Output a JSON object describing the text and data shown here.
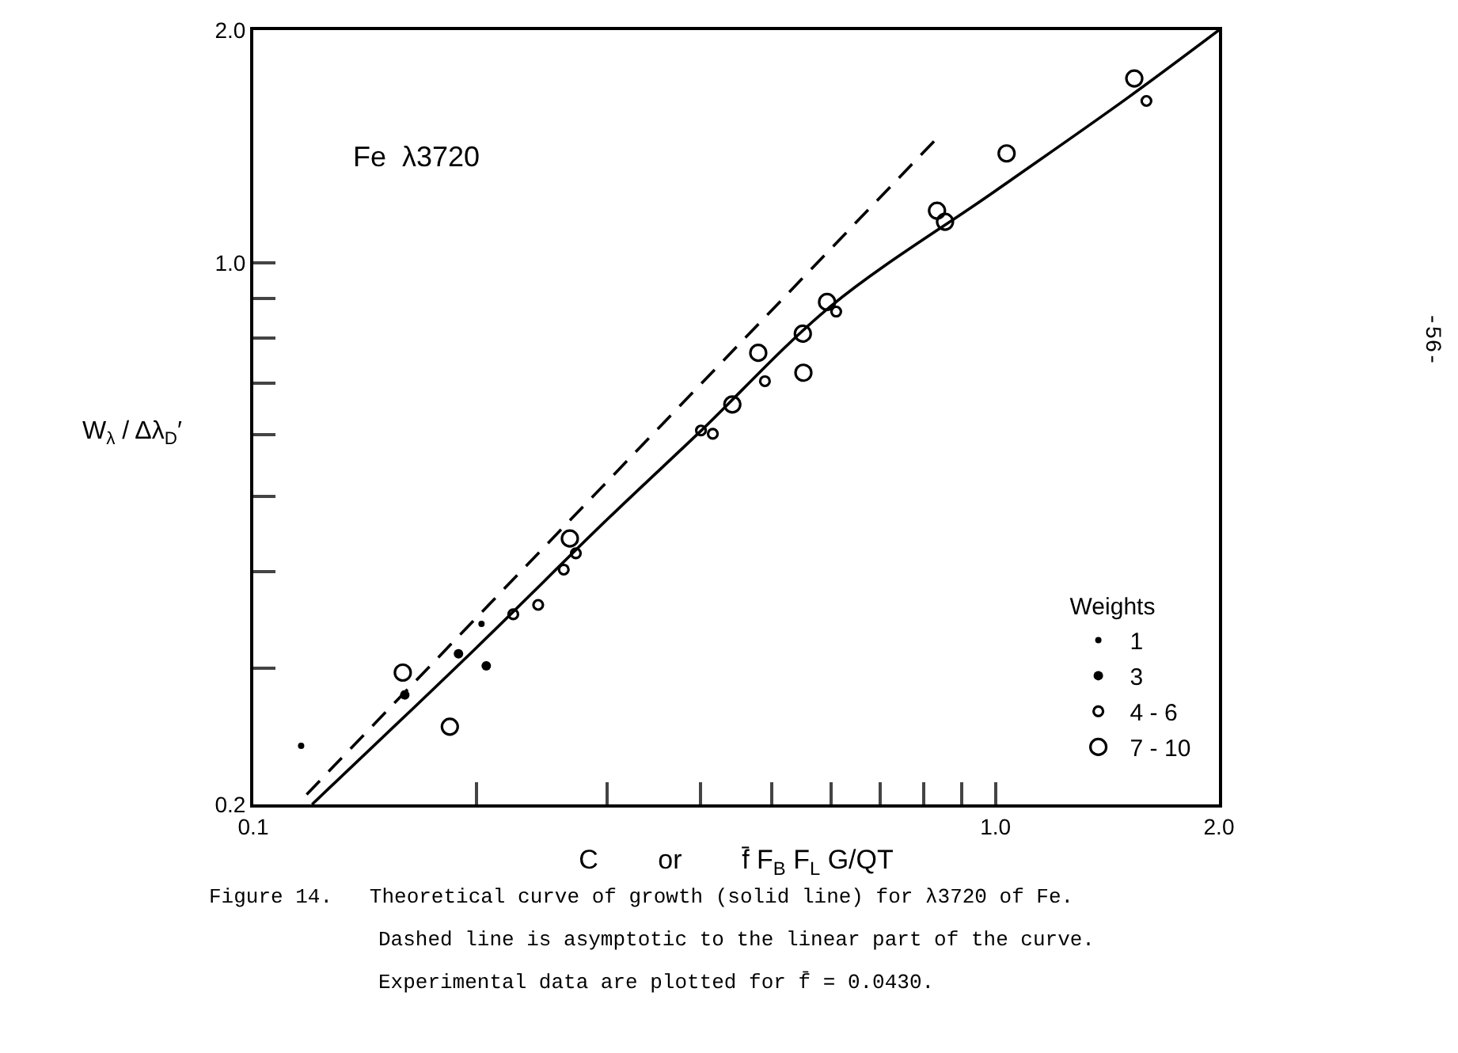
{
  "chart_data": {
    "type": "scatter",
    "log": "xy",
    "xlim": [
      0.1,
      2.0
    ],
    "ylim": [
      0.2,
      2.0
    ],
    "xticks": [
      0.1,
      {
        "value": 0.2,
        "label": null
      },
      {
        "value": 0.3,
        "label": null
      },
      {
        "value": 0.4,
        "label": null
      },
      {
        "value": 0.5,
        "label": null
      },
      {
        "value": 0.6,
        "label": null
      },
      {
        "value": 0.7,
        "label": null
      },
      {
        "value": 0.8,
        "label": null
      },
      {
        "value": 0.9,
        "label": null
      },
      {
        "value": 1,
        "label": "1.0"
      },
      {
        "value": 2,
        "label": "2.0"
      }
    ],
    "yticks": [
      0.2,
      {
        "value": 0.3,
        "label": null
      },
      {
        "value": 0.4,
        "label": null
      },
      {
        "value": 0.5,
        "label": null
      },
      {
        "value": 0.6,
        "label": null
      },
      {
        "value": 0.7,
        "label": null
      },
      {
        "value": 0.8,
        "label": null
      },
      {
        "value": 0.9,
        "label": null
      },
      {
        "value": 1,
        "label": "1.0"
      },
      {
        "value": 2,
        "label": "2.0"
      }
    ],
    "xlabel": "C        or        f̄ F$_{B}$ F$_{L}$ G/QT",
    "ylabel": "W$_{λ}$ / Δλ$_{D}$′",
    "legend_title": "Weights",
    "legend": "bottom right",
    "grid": false,
    "annotations": [
      "Fe  λ3720",
      "Figure 14.   Theoretical curve of growth (solid line) for λ3720 of Fe.",
      "Dashed line is asymptotic to the linear part of the curve.",
      "Experimental data are plotted for f̄ = 0.0430.",
      "-56-"
    ],
    "series": [
      {
        "name": "1",
        "marker": "circle",
        "color": "#000000",
        "x": [
          0.116,
          0.203
        ],
        "values": [
          0.238,
          0.342
        ]
      },
      {
        "name": "3",
        "marker": "circle",
        "color": "#000000",
        "x": [
          0.189,
          0.206,
          0.16
        ],
        "values": [
          0.313,
          0.302,
          0.277
        ]
      },
      {
        "name": "4 - 6",
        "marker": "circle",
        "color": "#000000",
        "x": [
          0.224,
          0.242,
          0.262,
          0.272,
          0.401,
          0.416,
          0.489,
          0.61,
          1.597
        ],
        "values": [
          0.352,
          0.362,
          0.402,
          0.422,
          0.608,
          0.602,
          0.704,
          0.866,
          1.62
        ]
      },
      {
        "name": "7 - 10",
        "marker": "circle",
        "color": "#000000",
        "x": [
          0.159,
          0.184,
          0.267,
          0.442,
          0.479,
          0.55,
          0.551,
          0.593,
          0.834,
          0.855,
          1.035,
          1.538
        ],
        "values": [
          0.296,
          0.252,
          0.441,
          0.657,
          0.766,
          0.811,
          0.722,
          0.891,
          1.169,
          1.131,
          1.386,
          1.732
        ]
      },
      {
        "type": "line",
        "line_style": "solid",
        "color": "#000000",
        "x": [
          0.12,
          0.2,
          0.3,
          0.4,
          0.6,
          1.0,
          1.5,
          2.0
        ],
        "values": [
          0.2,
          0.319,
          0.467,
          0.606,
          0.88,
          1.24,
          1.63,
          2.0
        ]
      },
      {
        "type": "line",
        "line_style": "dashed",
        "color": "#000000",
        "x": [
          0.118,
          0.834
        ],
        "values": [
          0.206,
          1.45
        ]
      }
    ]
  }
}
